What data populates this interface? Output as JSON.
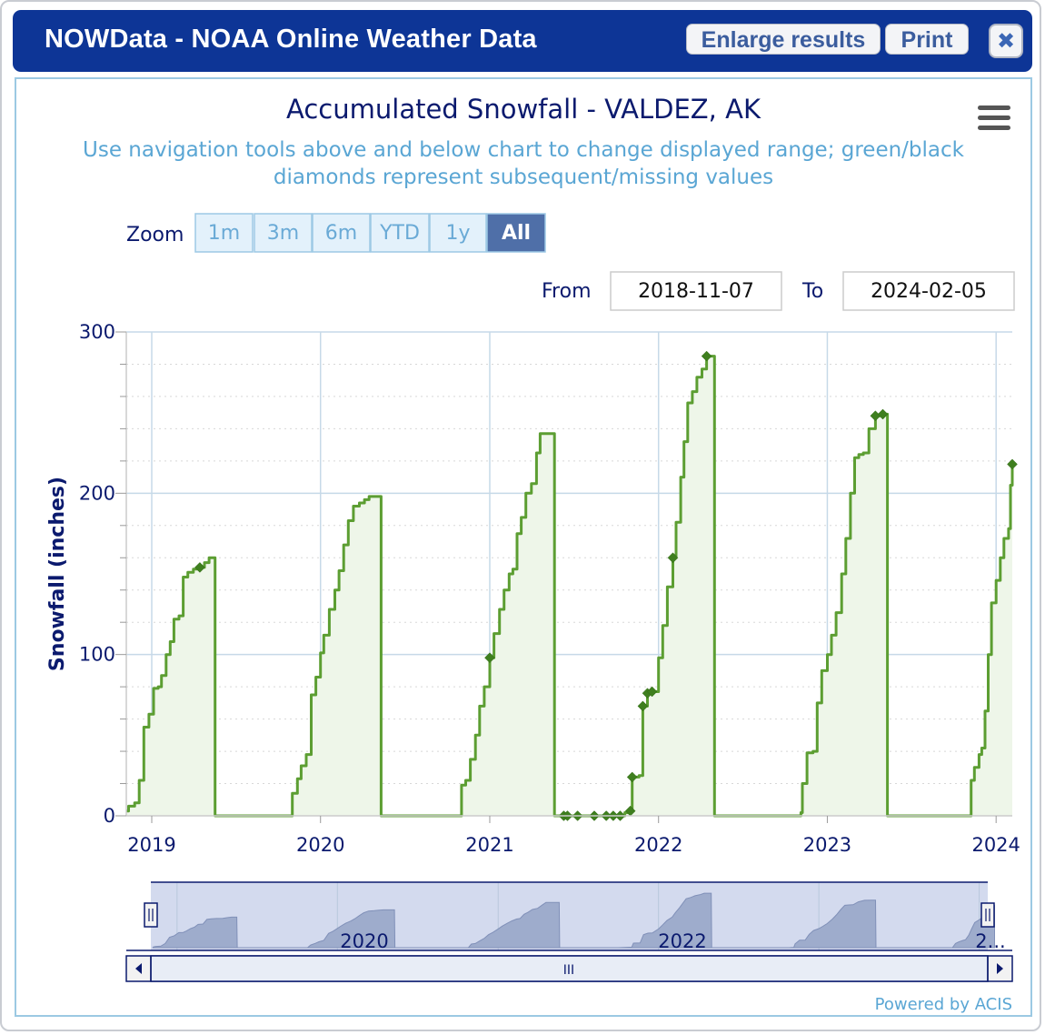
{
  "window": {
    "title": "NOWData - NOAA Online Weather Data",
    "enlarge_label": "Enlarge results",
    "print_label": "Print",
    "close_glyph": "✖"
  },
  "zoom": {
    "label": "Zoom",
    "buttons": [
      "1m",
      "3m",
      "6m",
      "YTD",
      "1y",
      "All"
    ],
    "selected": "All"
  },
  "range": {
    "from_label": "From",
    "from_value": "2018-11-07",
    "to_label": "To",
    "to_value": "2024-02-05"
  },
  "navigator": {
    "labels": [
      "2020",
      "2022",
      "2..."
    ],
    "scroll_grip": "III"
  },
  "credits": "Powered by ACIS",
  "icons": {
    "menu": "hamburger-menu-icon",
    "close": "close-icon"
  },
  "colors": {
    "series": "#5c9e32",
    "fill": "#eef6e9",
    "axis_text": "#0b1a6e",
    "subtitle": "#5aa6d4",
    "titlebar": "#0d3596"
  },
  "chart_data": {
    "type": "area",
    "title": "Accumulated Snowfall - VALDEZ, AK",
    "subtitle": "Use navigation tools above and below chart to change displayed range; green/black diamonds represent subsequent/missing values",
    "subtitle_lines": [
      "Use navigation tools above and below chart to change displayed range; green/black",
      "diamonds represent subsequent/missing values"
    ],
    "ylabel": "Snowfall (inches)",
    "xlabel": "",
    "ylim": [
      0,
      300
    ],
    "yticks": [
      0,
      100,
      200,
      300
    ],
    "xlim": [
      "2018-11-07",
      "2024-02-05"
    ],
    "xticks": [
      "2019",
      "2020",
      "2021",
      "2022",
      "2023",
      "2024"
    ],
    "series": [
      {
        "name": "",
        "points": [
          [
            "2018-11-07",
            3
          ],
          [
            "2018-11-12",
            6
          ],
          [
            "2018-11-25",
            8
          ],
          [
            "2018-12-05",
            22
          ],
          [
            "2018-12-15",
            55
          ],
          [
            "2018-12-26",
            63
          ],
          [
            "2019-01-05",
            79
          ],
          [
            "2019-01-15",
            80
          ],
          [
            "2019-01-22",
            87
          ],
          [
            "2019-02-01",
            100
          ],
          [
            "2019-02-10",
            108
          ],
          [
            "2019-02-18",
            122
          ],
          [
            "2019-03-01",
            124
          ],
          [
            "2019-03-10",
            148
          ],
          [
            "2019-03-20",
            151
          ],
          [
            "2019-04-01",
            153
          ],
          [
            "2019-04-15",
            154
          ],
          [
            "2019-04-25",
            157
          ],
          [
            "2019-05-05",
            160
          ],
          [
            "2019-05-17",
            160
          ],
          [
            "2019-05-18",
            0
          ],
          [
            "2019-10-25",
            0
          ],
          [
            "2019-11-01",
            14
          ],
          [
            "2019-11-12",
            23
          ],
          [
            "2019-11-20",
            31
          ],
          [
            "2019-12-01",
            38
          ],
          [
            "2019-12-12",
            75
          ],
          [
            "2019-12-22",
            86
          ],
          [
            "2020-01-01",
            101
          ],
          [
            "2020-01-08",
            112
          ],
          [
            "2020-01-20",
            128
          ],
          [
            "2020-02-01",
            140
          ],
          [
            "2020-02-10",
            152
          ],
          [
            "2020-02-20",
            168
          ],
          [
            "2020-03-01",
            183
          ],
          [
            "2020-03-12",
            192
          ],
          [
            "2020-03-25",
            194
          ],
          [
            "2020-04-05",
            196
          ],
          [
            "2020-04-15",
            198
          ],
          [
            "2020-05-10",
            198
          ],
          [
            "2020-05-11",
            0
          ],
          [
            "2020-10-25",
            0
          ],
          [
            "2020-11-01",
            19
          ],
          [
            "2020-11-10",
            22
          ],
          [
            "2020-11-20",
            35
          ],
          [
            "2020-12-01",
            50
          ],
          [
            "2020-12-10",
            68
          ],
          [
            "2020-12-20",
            80
          ],
          [
            "2021-01-01",
            98
          ],
          [
            "2021-01-10",
            113
          ],
          [
            "2021-01-22",
            128
          ],
          [
            "2021-02-01",
            140
          ],
          [
            "2021-02-12",
            150
          ],
          [
            "2021-02-20",
            153
          ],
          [
            "2021-03-01",
            175
          ],
          [
            "2021-03-10",
            185
          ],
          [
            "2021-03-20",
            200
          ],
          [
            "2021-04-01",
            206
          ],
          [
            "2021-04-12",
            225
          ],
          [
            "2021-04-20",
            237
          ],
          [
            "2021-05-20",
            237
          ],
          [
            "2021-05-21",
            0
          ],
          [
            "2021-06-10",
            0
          ],
          [
            "2021-07-01",
            0
          ],
          [
            "2021-08-01",
            0
          ],
          [
            "2021-09-01",
            0
          ],
          [
            "2021-10-01",
            0
          ],
          [
            "2021-10-20",
            2
          ],
          [
            "2021-11-01",
            3
          ],
          [
            "2021-11-05",
            24
          ],
          [
            "2021-11-20",
            25
          ],
          [
            "2021-11-28",
            68
          ],
          [
            "2021-12-08",
            76
          ],
          [
            "2021-12-18",
            77
          ],
          [
            "2022-01-01",
            98
          ],
          [
            "2022-01-10",
            118
          ],
          [
            "2022-01-20",
            142
          ],
          [
            "2022-02-01",
            160
          ],
          [
            "2022-02-08",
            182
          ],
          [
            "2022-02-18",
            210
          ],
          [
            "2022-02-25",
            232
          ],
          [
            "2022-03-05",
            256
          ],
          [
            "2022-03-15",
            263
          ],
          [
            "2022-03-25",
            272
          ],
          [
            "2022-04-05",
            277
          ],
          [
            "2022-04-15",
            285
          ],
          [
            "2022-05-01",
            285
          ],
          [
            "2022-05-02",
            0
          ],
          [
            "2022-10-25",
            0
          ],
          [
            "2022-11-05",
            2
          ],
          [
            "2022-11-08",
            20
          ],
          [
            "2022-11-18",
            39
          ],
          [
            "2022-12-01",
            40
          ],
          [
            "2022-12-10",
            70
          ],
          [
            "2022-12-20",
            90
          ],
          [
            "2023-01-01",
            100
          ],
          [
            "2023-01-10",
            112
          ],
          [
            "2023-01-20",
            126
          ],
          [
            "2023-02-01",
            150
          ],
          [
            "2023-02-10",
            172
          ],
          [
            "2023-02-20",
            200
          ],
          [
            "2023-03-01",
            222
          ],
          [
            "2023-03-10",
            224
          ],
          [
            "2023-03-20",
            225
          ],
          [
            "2023-04-01",
            240
          ],
          [
            "2023-04-15",
            248
          ],
          [
            "2023-05-01",
            249
          ],
          [
            "2023-05-10",
            249
          ],
          [
            "2023-05-11",
            0
          ],
          [
            "2023-11-01",
            0
          ],
          [
            "2023-11-08",
            22
          ],
          [
            "2023-11-15",
            30
          ],
          [
            "2023-11-25",
            38
          ],
          [
            "2023-12-01",
            42
          ],
          [
            "2023-12-08",
            65
          ],
          [
            "2023-12-15",
            100
          ],
          [
            "2023-12-22",
            132
          ],
          [
            "2024-01-01",
            146
          ],
          [
            "2024-01-10",
            160
          ],
          [
            "2024-01-18",
            172
          ],
          [
            "2024-01-28",
            178
          ],
          [
            "2024-02-01",
            205
          ],
          [
            "2024-02-05",
            218
          ]
        ],
        "markers": [
          [
            "2019-04-15",
            154
          ],
          [
            "2021-01-01",
            98
          ],
          [
            "2021-06-10",
            0
          ],
          [
            "2021-06-18",
            0
          ],
          [
            "2021-07-10",
            0
          ],
          [
            "2021-08-15",
            0
          ],
          [
            "2021-09-10",
            0
          ],
          [
            "2021-09-25",
            0
          ],
          [
            "2021-10-10",
            0
          ],
          [
            "2021-11-01",
            3
          ],
          [
            "2021-11-05",
            24
          ],
          [
            "2021-11-28",
            68
          ],
          [
            "2021-12-08",
            76
          ],
          [
            "2021-12-18",
            77
          ],
          [
            "2022-02-01",
            160
          ],
          [
            "2022-04-15",
            285
          ],
          [
            "2023-04-15",
            248
          ],
          [
            "2023-05-01",
            249
          ],
          [
            "2024-02-05",
            218
          ]
        ]
      }
    ],
    "legend": "none",
    "grid": true
  }
}
